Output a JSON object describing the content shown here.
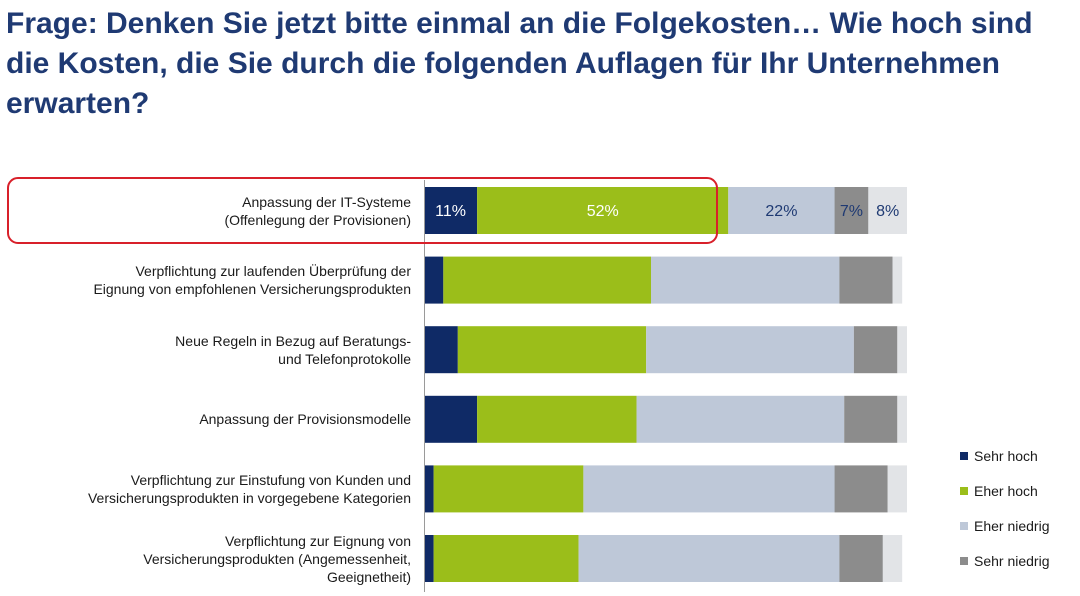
{
  "title": "Frage: Denken Sie jetzt bitte einmal an die Folgekosten… Wie hoch sind die Kosten, die Sie durch die folgenden Auflagen für Ihr Unternehmen erwarten?",
  "chart_data": {
    "type": "bar",
    "orientation": "horizontal",
    "stacked": true,
    "title": "Frage: Denken Sie jetzt bitte einmal an die Folgekosten… Wie hoch sind die Kosten, die Sie durch die folgenden Auflagen für Ihr Unternehmen erwarten?",
    "xlabel": "",
    "ylabel": "",
    "xlim": [
      0,
      100
    ],
    "grid": false,
    "legend_position": "bottom-right",
    "categories": [
      [
        "Anpassung der IT-Systeme",
        "(Offenlegung der Provisionen)"
      ],
      [
        "Verpflichtung zur laufenden Überprüfung der",
        "Eignung von empfohlenen Versicherungsprodukten"
      ],
      [
        "Neue Regeln in Bezug auf Beratungs-",
        "und Telefonprotokolle"
      ],
      [
        "Anpassung der Provisionsmodelle"
      ],
      [
        "Verpflichtung zur Einstufung von Kunden und",
        "Versicherungsprodukten in vorgegebene Kategorien"
      ],
      [
        "Verpflichtung zur Eignung von",
        "Versicherungsprodukten (Angemessenheit,",
        "Geeignetheit)"
      ]
    ],
    "series": [
      {
        "name": "Sehr hoch",
        "color": "#0f2a66",
        "values": [
          11,
          4,
          7,
          11,
          2,
          2
        ],
        "labels": [
          "11%",
          "",
          "",
          "",
          "",
          ""
        ],
        "label_color": "#ffffff"
      },
      {
        "name": "Eher hoch",
        "color": "#9bbe1a",
        "values": [
          52,
          43,
          39,
          33,
          31,
          30
        ],
        "labels": [
          "52%",
          "",
          "",
          "",
          "",
          ""
        ],
        "label_color": "#ffffff"
      },
      {
        "name": "Eher niedrig",
        "color": "#bec8d8",
        "values": [
          22,
          39,
          43,
          43,
          52,
          54
        ],
        "labels": [
          "22%",
          "",
          "",
          "",
          "",
          ""
        ],
        "label_color": "#1f3a73"
      },
      {
        "name": "Sehr niedrig",
        "color": "#8c8c8c",
        "values": [
          7,
          11,
          9,
          11,
          11,
          9
        ],
        "labels": [
          "7%",
          "",
          "",
          "",
          "",
          ""
        ],
        "label_color": "#1f3a73"
      },
      {
        "name": "",
        "color": "#e2e4e7",
        "values": [
          8,
          2,
          2,
          2,
          4,
          4
        ],
        "labels": [
          "8%",
          "",
          "",
          "",
          "",
          ""
        ],
        "label_color": "#1f3a73"
      }
    ],
    "highlight": {
      "category_index": 0,
      "color": "#d8202a"
    }
  }
}
